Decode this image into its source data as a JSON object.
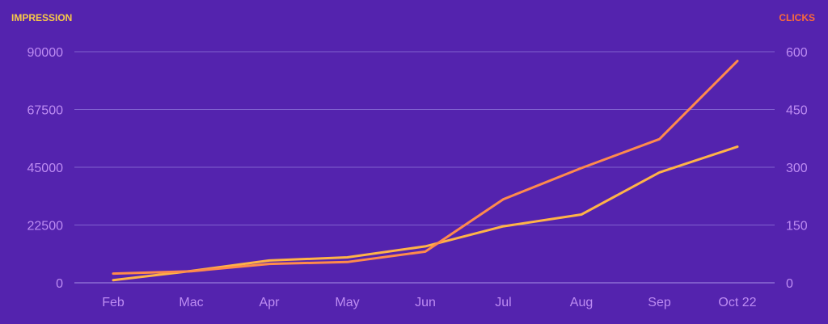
{
  "chart_data": {
    "type": "line",
    "categories": [
      "Feb",
      "Mac",
      "Apr",
      "May",
      "Jun",
      "Jul",
      "Aug",
      "Sep",
      "Oct 22"
    ],
    "y_left": {
      "label": "IMPRESSION",
      "ylim": [
        0,
        90000
      ],
      "ticks": [
        "0",
        "22500",
        "45000",
        "67500",
        "90000"
      ],
      "color": "#f7c948"
    },
    "y_right": {
      "label": "CLICKS",
      "ylim": [
        0,
        600
      ],
      "ticks": [
        "0",
        "150",
        "300",
        "450",
        "600"
      ],
      "color": "#fb6a3a"
    },
    "series": [
      {
        "axis": "left",
        "color": "#ffb347",
        "values": [
          1000,
          4600,
          8700,
          9900,
          14200,
          22000,
          26600,
          43000,
          53000
        ]
      },
      {
        "axis": "right",
        "color": "#ff8a4c",
        "values": [
          24,
          30,
          49,
          54,
          81,
          217,
          298,
          373,
          576
        ]
      }
    ],
    "grid": true,
    "legend": "none"
  }
}
